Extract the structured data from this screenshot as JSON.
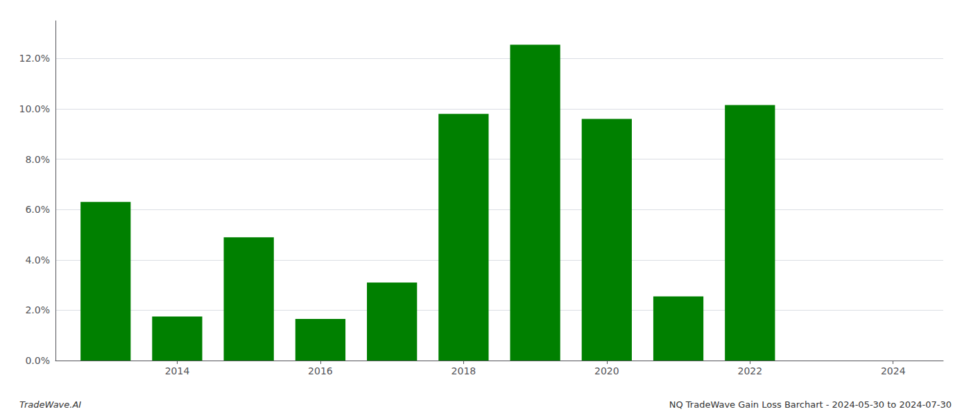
{
  "chart_data": {
    "type": "bar",
    "x": [
      2013,
      2014,
      2015,
      2016,
      2017,
      2018,
      2019,
      2020,
      2021,
      2022,
      2023
    ],
    "values": [
      0.063,
      0.0175,
      0.049,
      0.0165,
      0.031,
      0.098,
      0.1255,
      0.096,
      0.0255,
      0.1015,
      0.0
    ],
    "color": "#008000",
    "xlim": [
      2012.3,
      2024.7
    ],
    "xticks": [
      2014,
      2016,
      2018,
      2020,
      2022,
      2024
    ],
    "ylim": [
      0.0,
      0.135
    ],
    "yticks": [
      {
        "value": 0.0,
        "label": "0.0%"
      },
      {
        "value": 0.02,
        "label": "2.0%"
      },
      {
        "value": 0.04,
        "label": "4.0%"
      },
      {
        "value": 0.06,
        "label": "6.0%"
      },
      {
        "value": 0.08,
        "label": "8.0%"
      },
      {
        "value": 0.1,
        "label": "10.0%"
      },
      {
        "value": 0.12,
        "label": "12.0%"
      }
    ],
    "grid": true,
    "annotations": [
      "TradeWave.AI",
      "NQ TradeWave Gain Loss Barchart - 2024-05-30 to 2024-07-30"
    ]
  }
}
